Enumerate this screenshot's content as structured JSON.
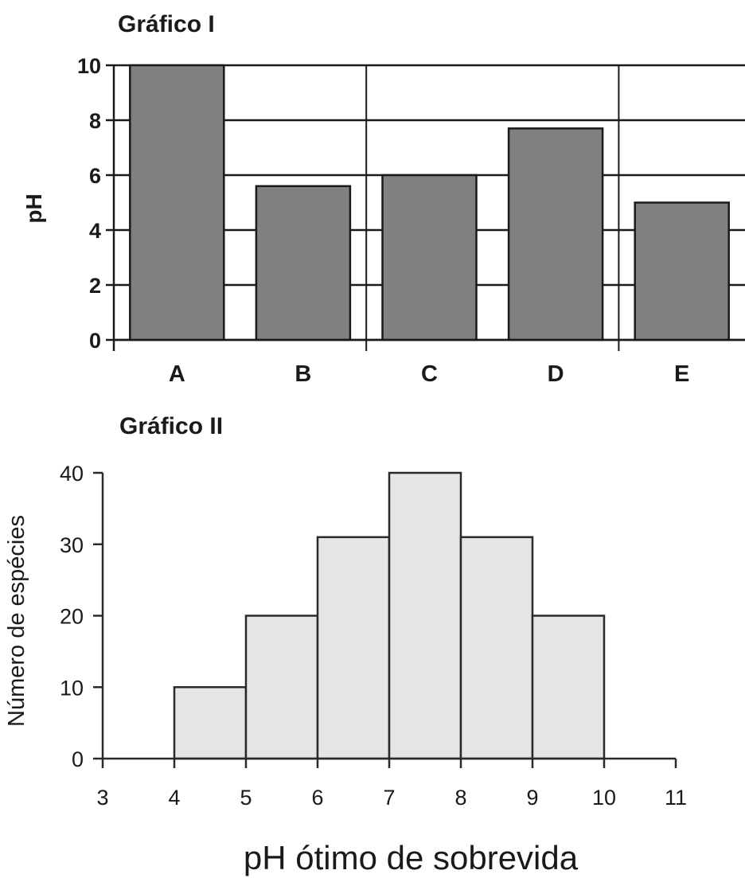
{
  "chart_data": [
    {
      "type": "bar",
      "title": "Gráfico I",
      "ylabel": "pH",
      "xlabel": "",
      "categories": [
        "A",
        "B",
        "C",
        "D",
        "E"
      ],
      "values": [
        10,
        5.6,
        6.0,
        7.7,
        5.0
      ],
      "ylim": [
        0,
        10
      ],
      "yticks": [
        "0",
        "2",
        "4",
        "6",
        "8",
        "10"
      ],
      "grid": true,
      "colors": {
        "bar": "#7f8081",
        "grid": "#1a1a1a"
      }
    },
    {
      "type": "bar",
      "title": "Gráfico II",
      "ylabel": "Número de espécies",
      "xlabel": "pH ótimo de sobrevida",
      "bins": [
        [
          4,
          5
        ],
        [
          5,
          6
        ],
        [
          6,
          7
        ],
        [
          7,
          8
        ],
        [
          8,
          9
        ],
        [
          9,
          10
        ]
      ],
      "values": [
        10,
        20,
        31,
        40,
        31,
        20
      ],
      "xlim": [
        3,
        11
      ],
      "ylim": [
        0,
        40
      ],
      "xticks": [
        "3",
        "4",
        "5",
        "6",
        "7",
        "8",
        "9",
        "10",
        "11"
      ],
      "yticks": [
        "0",
        "10",
        "20",
        "30",
        "40"
      ],
      "grid": false,
      "colors": {
        "bar": "#e3e5e7",
        "edge": "#2a2a2a"
      }
    }
  ]
}
